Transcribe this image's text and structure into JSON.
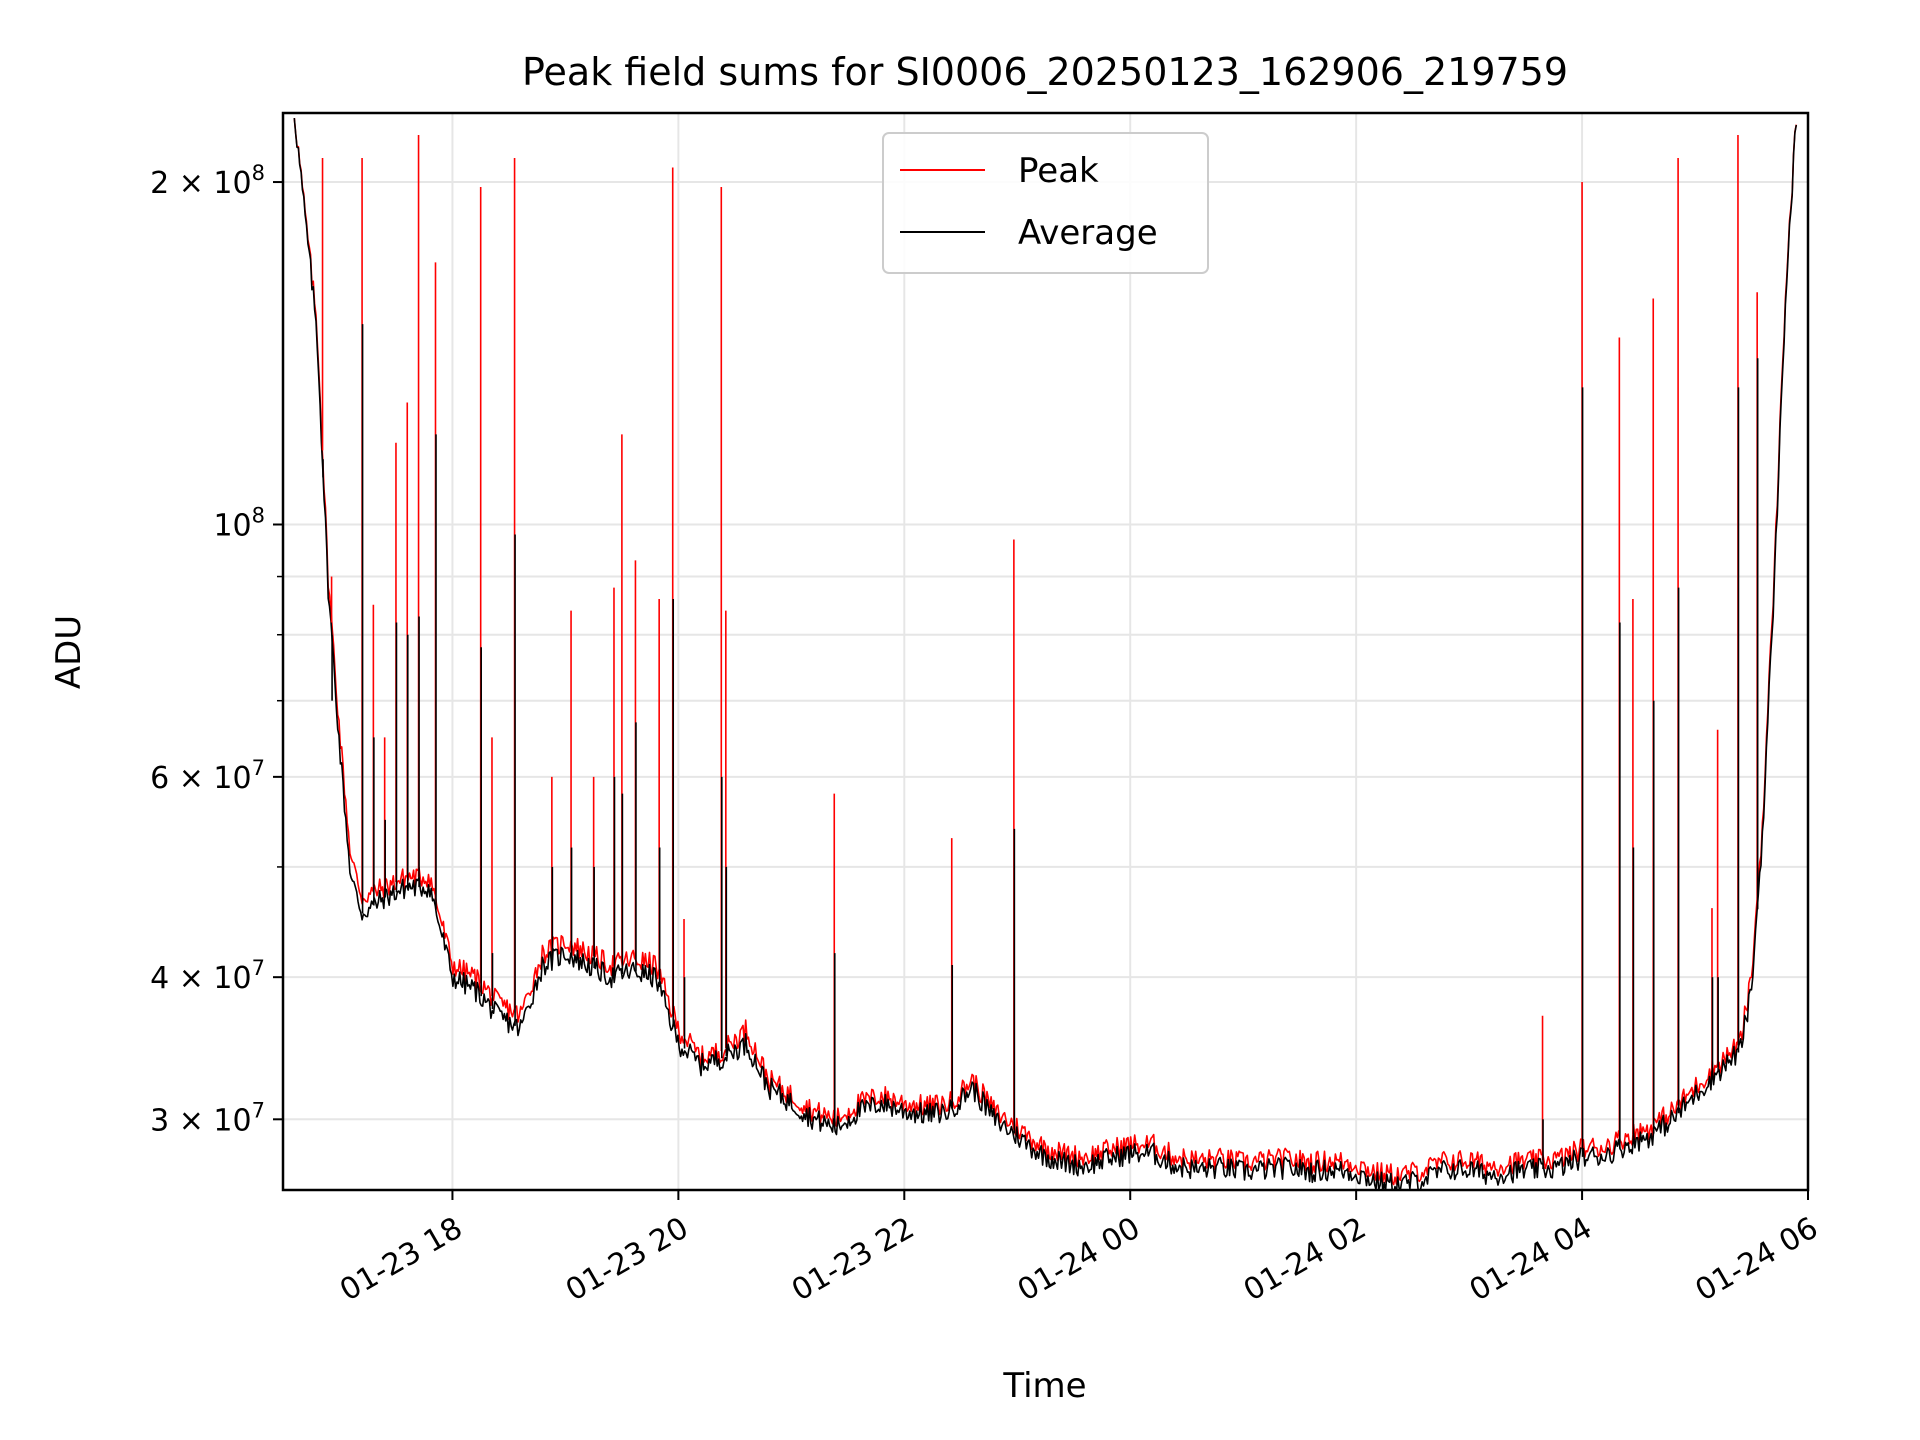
{
  "chart_data": {
    "type": "line",
    "title": "Peak field sums for SI0006_20250123_162906_219759",
    "xlabel": "Time",
    "ylabel": "ADU",
    "x_tick_labels": [
      "01-23 18",
      "01-23 20",
      "01-23 22",
      "01-24 00",
      "01-24 02",
      "01-24 04",
      "01-24 06"
    ],
    "x_tick_hours": [
      18,
      20,
      22,
      24,
      26,
      28,
      30
    ],
    "y_scale": "log",
    "y_major_ticks": [
      {
        "value": 30000000,
        "mantissa": "3",
        "exp": "7"
      },
      {
        "value": 40000000,
        "mantissa": "4",
        "exp": "7"
      },
      {
        "value": 60000000,
        "mantissa": "6",
        "exp": "7"
      },
      {
        "value": 100000000,
        "mantissa": "",
        "exp": "8"
      },
      {
        "value": 200000000,
        "mantissa": "2",
        "exp": "8"
      }
    ],
    "y_minor_ticks": [
      50000000,
      70000000,
      80000000,
      90000000
    ],
    "xlim_hours": [
      16.5,
      30.0
    ],
    "ylim": [
      26000000,
      230000000
    ],
    "grid": true,
    "legend_position": "top-center",
    "x_hours": [
      16.6,
      16.8,
      16.9,
      17.0,
      17.1,
      17.2,
      17.4,
      17.6,
      17.8,
      18.0,
      18.2,
      18.4,
      18.6,
      18.8,
      19.0,
      19.2,
      19.4,
      19.6,
      19.8,
      20.0,
      20.2,
      20.4,
      20.6,
      20.8,
      21.0,
      21.2,
      21.4,
      21.6,
      21.8,
      22.0,
      22.2,
      22.4,
      22.6,
      22.8,
      23.0,
      23.2,
      23.4,
      23.6,
      23.8,
      24.0,
      24.2,
      24.4,
      24.6,
      24.8,
      25.0,
      25.2,
      25.4,
      25.6,
      25.8,
      26.0,
      26.2,
      26.4,
      26.6,
      26.8,
      27.0,
      27.2,
      27.4,
      27.6,
      27.8,
      28.0,
      28.2,
      28.4,
      28.6,
      28.8,
      29.0,
      29.2,
      29.4,
      29.5,
      29.6,
      29.7,
      29.8,
      29.9
    ],
    "series": [
      {
        "name": "Peak",
        "color": "#ff0000",
        "values": [
          230000000,
          150000000,
          90000000,
          66000000,
          51000000,
          47000000,
          48000000,
          49000000,
          49000000,
          41000000,
          40000000,
          38000000,
          37000000,
          42000000,
          43000000,
          42000000,
          41000000,
          41500000,
          41000000,
          36000000,
          34000000,
          34500000,
          36000000,
          32500000,
          31500000,
          30500000,
          30000000,
          31000000,
          31500000,
          31000000,
          30800000,
          31000000,
          32500000,
          30500000,
          29500000,
          28500000,
          28000000,
          27800000,
          28200000,
          28500000,
          28500000,
          27800000,
          27600000,
          27700000,
          27500000,
          27600000,
          27700000,
          27500000,
          27600000,
          27400000,
          26900000,
          26800000,
          27100000,
          27600000,
          27600000,
          27300000,
          27500000,
          27600000,
          27700000,
          28300000,
          28400000,
          29000000,
          29500000,
          30500000,
          32000000,
          33500000,
          35000000,
          40000000,
          55000000,
          90000000,
          160000000,
          230000000
        ]
      },
      {
        "name": "Average",
        "color": "#000000",
        "values": [
          230000000,
          148000000,
          88000000,
          64000000,
          49000000,
          45500000,
          47000000,
          48000000,
          48000000,
          40000000,
          39000000,
          37000000,
          36000000,
          41000000,
          42000000,
          41000000,
          40000000,
          40500000,
          40000000,
          35000000,
          33500000,
          34000000,
          35000000,
          32000000,
          31000000,
          30000000,
          29500000,
          30500000,
          31000000,
          30500000,
          30300000,
          30500000,
          32000000,
          30000000,
          29000000,
          28000000,
          27500000,
          27300000,
          27700000,
          28000000,
          28000000,
          27300000,
          27100000,
          27200000,
          27000000,
          27100000,
          27200000,
          27000000,
          27100000,
          26900000,
          26400000,
          26300000,
          26600000,
          27100000,
          27100000,
          26800000,
          27000000,
          27100000,
          27200000,
          27800000,
          27900000,
          28500000,
          29000000,
          30000000,
          31500000,
          33000000,
          34500000,
          39000000,
          54000000,
          88000000,
          158000000,
          230000000
        ]
      }
    ],
    "spikes": [
      {
        "hour": 16.85,
        "peak": 210000000,
        "avg": 110000000
      },
      {
        "hour": 16.93,
        "peak": 90000000,
        "avg": 70000000
      },
      {
        "hour": 17.2,
        "peak": 210000000,
        "avg": 150000000
      },
      {
        "hour": 17.3,
        "peak": 85000000,
        "avg": 65000000
      },
      {
        "hour": 17.4,
        "peak": 65000000,
        "avg": 55000000
      },
      {
        "hour": 17.5,
        "peak": 118000000,
        "avg": 82000000
      },
      {
        "hour": 17.6,
        "peak": 128000000,
        "avg": 80000000
      },
      {
        "hour": 17.7,
        "peak": 220000000,
        "avg": 83000000
      },
      {
        "hour": 17.85,
        "peak": 170000000,
        "avg": 120000000
      },
      {
        "hour": 18.25,
        "peak": 198000000,
        "avg": 78000000
      },
      {
        "hour": 18.35,
        "peak": 65000000,
        "avg": 42000000
      },
      {
        "hour": 18.55,
        "peak": 210000000,
        "avg": 98000000
      },
      {
        "hour": 18.88,
        "peak": 60000000,
        "avg": 50000000
      },
      {
        "hour": 19.05,
        "peak": 84000000,
        "avg": 52000000
      },
      {
        "hour": 19.25,
        "peak": 60000000,
        "avg": 50000000
      },
      {
        "hour": 19.43,
        "peak": 88000000,
        "avg": 60000000
      },
      {
        "hour": 19.5,
        "peak": 120000000,
        "avg": 58000000
      },
      {
        "hour": 19.62,
        "peak": 93000000,
        "avg": 67000000
      },
      {
        "hour": 19.83,
        "peak": 86000000,
        "avg": 52000000
      },
      {
        "hour": 19.95,
        "peak": 206000000,
        "avg": 86000000
      },
      {
        "hour": 20.05,
        "peak": 45000000,
        "avg": 40000000
      },
      {
        "hour": 20.38,
        "peak": 198000000,
        "avg": 60000000
      },
      {
        "hour": 20.42,
        "peak": 84000000,
        "avg": 50000000
      },
      {
        "hour": 21.38,
        "peak": 58000000,
        "avg": 42000000
      },
      {
        "hour": 22.42,
        "peak": 53000000,
        "avg": 41000000
      },
      {
        "hour": 22.97,
        "peak": 97000000,
        "avg": 54000000
      },
      {
        "hour": 27.65,
        "peak": 37000000,
        "avg": 30000000
      },
      {
        "hour": 28.0,
        "peak": 200000000,
        "avg": 132000000
      },
      {
        "hour": 28.33,
        "peak": 146000000,
        "avg": 82000000
      },
      {
        "hour": 28.45,
        "peak": 86000000,
        "avg": 52000000
      },
      {
        "hour": 28.63,
        "peak": 158000000,
        "avg": 70000000
      },
      {
        "hour": 28.85,
        "peak": 210000000,
        "avg": 88000000
      },
      {
        "hour": 29.15,
        "peak": 46000000,
        "avg": 40000000
      },
      {
        "hour": 29.2,
        "peak": 66000000,
        "avg": 40000000
      },
      {
        "hour": 29.38,
        "peak": 220000000,
        "avg": 132000000
      },
      {
        "hour": 29.55,
        "peak": 160000000,
        "avg": 140000000
      }
    ]
  }
}
